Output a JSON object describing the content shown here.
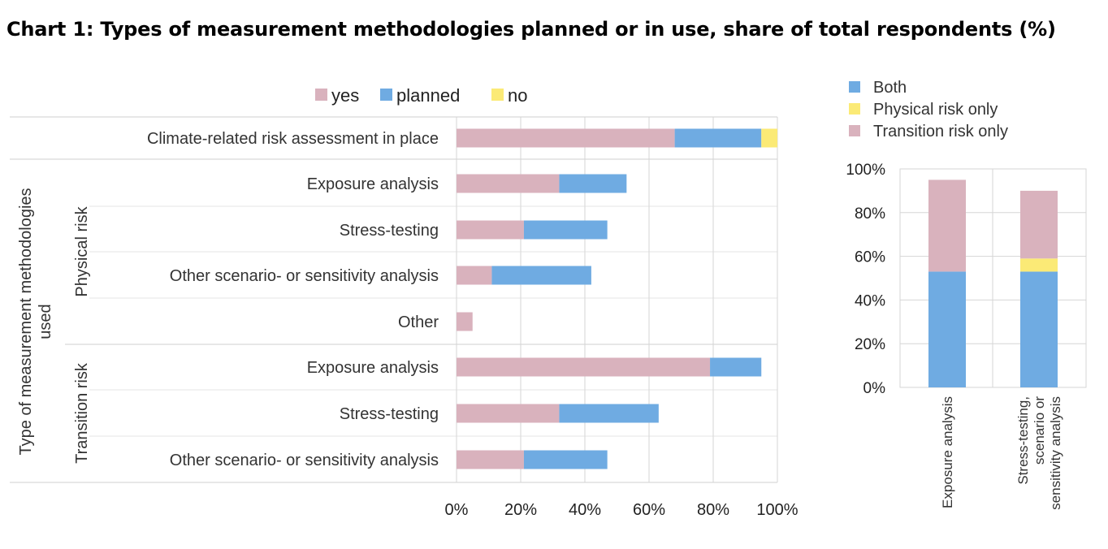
{
  "title": "Chart 1: Types of measurement methodologies planned or in use, share of total respondents (%)",
  "colors": {
    "yes": "#d9b2bd",
    "planned": "#6fabe2",
    "no": "#fbea76",
    "grid": "#d6d6d6",
    "border": "#cfcfcf"
  },
  "chart_data": [
    {
      "type": "bar",
      "orientation": "horizontal",
      "stacked": true,
      "legend": [
        "yes",
        "planned",
        "no"
      ],
      "legend_placement": "top",
      "y_axis_label": "Type of measurement methodologies used",
      "groups": [
        {
          "label": "",
          "rows": [
            {
              "label": "Climate-related risk assessment in place",
              "yes": 68,
              "planned": 27,
              "no": 5
            }
          ]
        },
        {
          "label": "Physical risk",
          "rows": [
            {
              "label": "Exposure analysis",
              "yes": 32,
              "planned": 21,
              "no": 0
            },
            {
              "label": "Stress-testing",
              "yes": 21,
              "planned": 26,
              "no": 0
            },
            {
              "label": "Other scenario- or sensitivity analysis",
              "yes": 11,
              "planned": 31,
              "no": 0
            },
            {
              "label": "Other",
              "yes": 5,
              "planned": 0,
              "no": 0
            }
          ]
        },
        {
          "label": "Transition risk",
          "rows": [
            {
              "label": "Exposure analysis",
              "yes": 79,
              "planned": 16,
              "no": 0
            },
            {
              "label": "Stress-testing",
              "yes": 32,
              "planned": 31,
              "no": 0
            },
            {
              "label": "Other scenario- or sensitivity analysis",
              "yes": 21,
              "planned": 26,
              "no": 0
            }
          ]
        }
      ],
      "x_ticks": [
        "0%",
        "20%",
        "40%",
        "60%",
        "80%",
        "100%"
      ],
      "xlim": [
        0,
        100
      ],
      "grid": true
    },
    {
      "type": "bar",
      "orientation": "vertical",
      "stacked": true,
      "legend": [
        "Both",
        "Physical risk only",
        "Transition  risk only"
      ],
      "legend_placement": "top",
      "categories": [
        "Exposure analysis",
        "Stress-testing, scenario or sensitivity analysis"
      ],
      "category_labels": [
        [
          "Exposure analysis"
        ],
        [
          "Stress-testing,",
          "scenario or",
          "sensitivity analysis"
        ]
      ],
      "series": [
        {
          "name": "Both",
          "values": [
            53,
            53
          ]
        },
        {
          "name": "Physical risk only",
          "values": [
            0,
            6
          ]
        },
        {
          "name": "Transition  risk only",
          "values": [
            42,
            31
          ]
        }
      ],
      "y_ticks": [
        "100%",
        "80%",
        "60%",
        "40%",
        "20%",
        "0%"
      ],
      "ylim": [
        0,
        100
      ],
      "grid": true
    }
  ]
}
